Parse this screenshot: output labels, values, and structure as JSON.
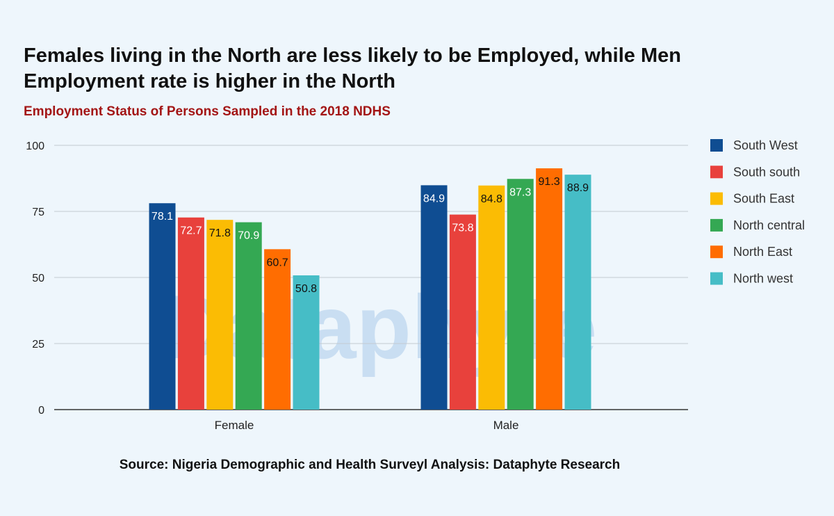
{
  "title": "Females living in the North are less likely to be Employed, while Men Employment rate is higher in the North",
  "subtitle": "Employment Status of Persons Sampled in the 2018 NDHS",
  "source": "Source: Nigeria Demographic and Health Surveyl Analysis: Dataphyte Research",
  "watermark": "Dataphyte",
  "chart_data": {
    "type": "bar",
    "categories": [
      "Female",
      "Male"
    ],
    "ylim": [
      0,
      100
    ],
    "yticks": [
      0,
      25,
      50,
      75,
      100
    ],
    "grid": true,
    "legend_position": "right",
    "series": [
      {
        "name": "South West",
        "color": "#0f4d92",
        "label_color": "#ffffff",
        "values": [
          78.1,
          84.9
        ]
      },
      {
        "name": "South south",
        "color": "#e8413c",
        "label_color": "#ffffff",
        "values": [
          72.7,
          73.8
        ]
      },
      {
        "name": "South East",
        "color": "#fbbc04",
        "label_color": "#111111",
        "values": [
          71.8,
          84.8
        ]
      },
      {
        "name": "North central",
        "color": "#34a853",
        "label_color": "#ffffff",
        "values": [
          70.9,
          87.3
        ]
      },
      {
        "name": "North East",
        "color": "#ff6d01",
        "label_color": "#111111",
        "values": [
          60.7,
          91.3
        ]
      },
      {
        "name": "North west",
        "color": "#46bdc6",
        "label_color": "#111111",
        "values": [
          50.8,
          88.9
        ]
      }
    ]
  }
}
